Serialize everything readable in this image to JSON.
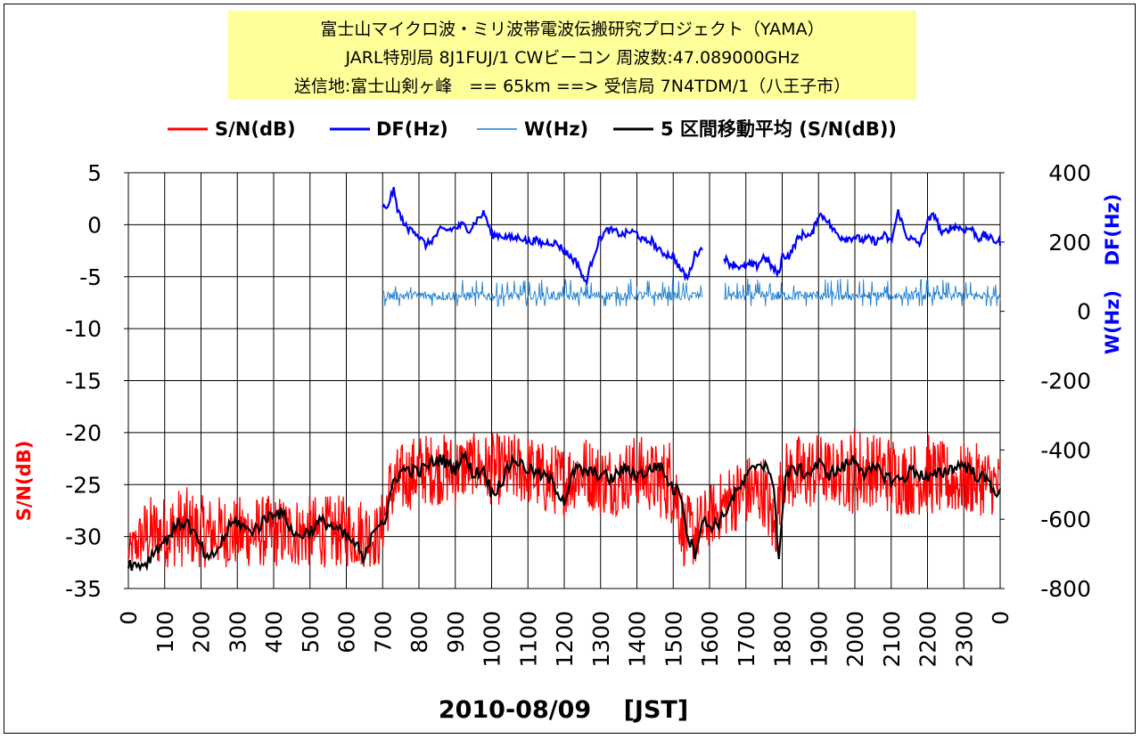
{
  "title_lines": [
    "富士山マイクロ波・ミリ波帯電波伝搬研究プロジェクト（YAMA）",
    "JARL特別局 8J1FUJ/1 CWビーコン 周波数:47.089000GHz",
    "送信地:富士山剣ヶ峰　== 65km ==> 受信局 7N4TDM/1（八王子市）"
  ],
  "colors": {
    "title_bg": "#ffff99",
    "sn": "#ff0000",
    "df": "#0000ff",
    "w": "#1f7fd0",
    "ma": "#000000",
    "grid": "#000000"
  },
  "chart_data": {
    "type": "line",
    "xlabel": "2010-08/09　 [JST]",
    "ylabel_left": "S/N(dB)",
    "ylabel_right_df": "DF(Hz)",
    "ylabel_right_w": "W(Hz)",
    "x_ticks": [
      "0",
      "100",
      "200",
      "300",
      "400",
      "500",
      "600",
      "700",
      "800",
      "900",
      "1000",
      "1100",
      "1200",
      "1300",
      "1400",
      "1500",
      "1600",
      "1700",
      "1800",
      "1900",
      "2000",
      "2100",
      "2200",
      "2300",
      "0"
    ],
    "y_left": {
      "min": -35,
      "max": 5,
      "ticks": [
        "5",
        "0",
        "-5",
        "-10",
        "-15",
        "-20",
        "-25",
        "-30",
        "-35"
      ]
    },
    "y_right": {
      "min": -800,
      "max": 400,
      "ticks": [
        "400",
        "200",
        "0",
        "-200",
        "-400",
        "-600",
        "-800"
      ]
    },
    "grid": "on",
    "legend_position": "top",
    "legend": [
      {
        "key": "sn",
        "label": "S/N(dB)"
      },
      {
        "key": "df",
        "label": "DF(Hz)"
      },
      {
        "key": "w",
        "label": "W(Hz)"
      },
      {
        "key": "ma",
        "label": "5 区間移動平均 (S/N(dB))"
      }
    ],
    "series": [
      {
        "name": "S/N(dB)",
        "axis": "left",
        "x_unit": "hours",
        "x": [
          0,
          0.5,
          1,
          1.5,
          2,
          2.5,
          3,
          3.5,
          4,
          4.5,
          5,
          5.5,
          6,
          6.5,
          6.9,
          7.2,
          7.5,
          8,
          8.5,
          9,
          9.5,
          10,
          10.5,
          11,
          11.5,
          12,
          12.5,
          13,
          13.5,
          14,
          14.5,
          15,
          15.3,
          15.6,
          16,
          16.5,
          17,
          17.5,
          17.8,
          18,
          18.5,
          19,
          19.5,
          20,
          20.5,
          21,
          21.5,
          22,
          22.5,
          23,
          23.5,
          24
        ],
        "low": [
          -33,
          -33,
          -33,
          -33,
          -33,
          -33,
          -33,
          -33,
          -33,
          -33,
          -33,
          -33,
          -33,
          -33,
          -33,
          -29,
          -28,
          -27,
          -27,
          -27,
          -26,
          -27,
          -27,
          -27,
          -28,
          -28,
          -27,
          -28,
          -28,
          -27,
          -28,
          -29,
          -33,
          -33,
          -31,
          -30,
          -29,
          -29,
          -33,
          -27,
          -28,
          -27,
          -27,
          -28,
          -27,
          -28,
          -28,
          -28,
          -28,
          -28,
          -28,
          -28
        ],
        "high": [
          -30,
          -26,
          -26,
          -25,
          -26,
          -26,
          -26,
          -26,
          -26,
          -26,
          -26,
          -26,
          -26,
          -26,
          -27,
          -22,
          -21,
          -20,
          -20,
          -20,
          -20,
          -20,
          -20,
          -20,
          -21,
          -21,
          -20,
          -21,
          -21,
          -20,
          -21,
          -20,
          -26,
          -26,
          -25,
          -23,
          -22,
          -22,
          -26,
          -21,
          -20,
          -20,
          -21,
          -19,
          -20,
          -20,
          -21,
          -20,
          -21,
          -21,
          -21,
          -22
        ]
      },
      {
        "name": "5 区間移動平均 (S/N(dB))",
        "axis": "left",
        "x_unit": "hours",
        "x": [
          0,
          0.2,
          0.5,
          0.8,
          1.0,
          1.3,
          1.6,
          2.0,
          2.2,
          2.5,
          2.8,
          3.0,
          3.3,
          3.6,
          4.0,
          4.3,
          4.6,
          5.0,
          5.3,
          5.6,
          6.0,
          6.3,
          6.5,
          6.7,
          6.9,
          7.1,
          7.3,
          7.6,
          8.0,
          8.3,
          8.6,
          9.0,
          9.2,
          9.5,
          9.8,
          10.0,
          10.3,
          10.6,
          11.0,
          11.3,
          11.6,
          12.0,
          12.3,
          12.6,
          13.0,
          13.3,
          13.6,
          14.0,
          14.3,
          14.6,
          15.0,
          15.2,
          15.4,
          15.6,
          15.8,
          16.0,
          16.3,
          16.6,
          17.0,
          17.3,
          17.6,
          17.8,
          17.9,
          18.1,
          18.4,
          18.7,
          19.0,
          19.3,
          19.6,
          20.0,
          20.3,
          20.6,
          21.0,
          21.3,
          21.6,
          22.0,
          22.3,
          22.6,
          23.0,
          23.3,
          23.6,
          24.0
        ],
        "values": [
          -32.5,
          -32.8,
          -32.5,
          -31,
          -30.5,
          -29,
          -28.5,
          -31,
          -32.5,
          -31,
          -29,
          -28.5,
          -29.5,
          -29,
          -27.5,
          -28,
          -30,
          -29.5,
          -28.5,
          -29,
          -30,
          -31,
          -32.5,
          -29.5,
          -28.5,
          -28.5,
          -24.5,
          -23.5,
          -23.8,
          -23,
          -22.5,
          -23.5,
          -22,
          -24,
          -23.5,
          -26,
          -24.5,
          -22.5,
          -23.5,
          -24,
          -24.5,
          -26.5,
          -23.5,
          -23.8,
          -24,
          -24.5,
          -23.5,
          -24,
          -23.8,
          -23,
          -25.5,
          -25.5,
          -30,
          -31.5,
          -28.5,
          -29,
          -28.5,
          -26.5,
          -24.5,
          -23,
          -23,
          -26.5,
          -32,
          -24,
          -23.5,
          -24,
          -23,
          -24,
          -23.5,
          -22.5,
          -24,
          -23.5,
          -24.5,
          -24.5,
          -23.5,
          -24.5,
          -24,
          -23.5,
          -23,
          -24,
          -24.5,
          -26
        ]
      },
      {
        "name": "DF(Hz)",
        "axis": "right",
        "x_unit": "hours",
        "segments": [
          {
            "x": [
              7.0,
              7.1,
              7.2,
              7.3,
              7.4,
              7.5,
              7.6,
              7.7,
              7.8,
              8.0,
              8.2,
              8.4,
              8.6,
              8.8,
              9.0,
              9.2,
              9.4,
              9.6,
              9.8,
              10.0,
              10.2,
              10.4,
              10.6,
              10.8,
              11.0,
              11.2,
              11.4,
              11.6,
              11.8,
              12.0,
              12.2,
              12.4,
              12.5,
              12.6,
              12.8,
              13.0,
              13.2,
              13.4,
              13.6,
              13.8,
              14.0,
              14.2,
              14.4,
              14.6,
              14.8,
              15.0,
              15.2,
              15.4,
              15.6,
              15.8
            ],
            "values": [
              305,
              290,
              325,
              350,
              300,
              270,
              255,
              230,
              245,
              215,
              190,
              210,
              235,
              235,
              240,
              250,
              235,
              265,
              285,
              220,
              220,
              215,
              210,
              215,
              200,
              205,
              195,
              200,
              195,
              175,
              155,
              135,
              95,
              85,
              160,
              215,
              235,
              230,
              220,
              230,
              225,
              200,
              205,
              175,
              165,
              160,
              120,
              95,
              165,
              180
            ]
          },
          {
            "x": [
              16.4,
              16.5,
              16.7,
              16.9,
              17.1,
              17.3,
              17.5,
              17.7,
              17.9,
              18.0,
              18.2,
              18.4,
              18.6,
              18.8,
              19.0,
              19.2,
              19.4,
              19.6,
              19.8,
              20.0,
              20.2,
              20.4,
              20.6,
              20.8,
              21.0,
              21.2,
              21.4,
              21.6,
              21.8,
              22.0,
              22.2,
              22.4,
              22.6,
              22.8,
              23.0,
              23.2,
              23.4,
              23.6,
              23.8,
              24.0
            ],
            "values": [
              160,
              140,
              135,
              125,
              135,
              130,
              160,
              130,
              105,
              160,
              160,
              205,
              225,
              215,
              280,
              270,
              235,
              215,
              210,
              215,
              205,
              210,
              200,
              220,
              200,
              290,
              220,
              205,
              195,
              260,
              280,
              220,
              240,
              245,
              235,
              240,
              210,
              220,
              205,
              200
            ]
          }
        ]
      },
      {
        "name": "W(Hz)",
        "axis": "right",
        "x_unit": "hours",
        "segments": [
          {
            "x": [
              7.0,
              15.8
            ],
            "mean": 45,
            "low": 15,
            "high": 95
          },
          {
            "x": [
              16.4,
              24.0
            ],
            "mean": 45,
            "low": 15,
            "high": 95
          }
        ]
      }
    ]
  }
}
